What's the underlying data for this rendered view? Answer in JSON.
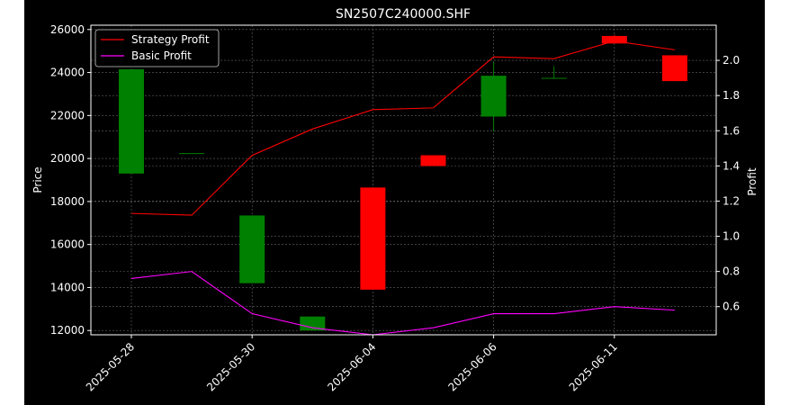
{
  "chart_data": {
    "type": "candlestick",
    "title": "SN2507C240000.SHF",
    "ylabel_left": "Price",
    "ylabel_right": "Profit",
    "x_tick_labels": [
      "2025-05-28",
      "2025-05-30",
      "2025-06-04",
      "2025-06-06",
      "2025-06-11"
    ],
    "x_tick_indices": [
      0,
      2,
      4,
      6,
      8
    ],
    "y_left_ticks": [
      12000,
      14000,
      16000,
      18000,
      20000,
      22000,
      24000,
      26000
    ],
    "y_left_lim": [
      11800,
      26200
    ],
    "y_right_ticks": [
      0.6,
      0.8,
      1.0,
      1.2,
      1.4,
      1.6,
      1.8,
      2.0
    ],
    "y_right_lim": [
      0.44,
      2.2
    ],
    "grid": true,
    "legend_position": "top-left",
    "candles": [
      {
        "open": 19300,
        "high": 24150,
        "low": 19300,
        "close": 24150
      },
      {
        "open": 20250,
        "high": 20250,
        "low": 20250,
        "close": 20250
      },
      {
        "open": 14200,
        "high": 17350,
        "low": 14200,
        "close": 17350
      },
      {
        "open": 12000,
        "high": 12650,
        "low": 12000,
        "close": 12650
      },
      {
        "open": 18650,
        "high": 18650,
        "low": 13900,
        "close": 13900
      },
      {
        "open": 20150,
        "high": 20150,
        "low": 19650,
        "close": 19650
      },
      {
        "open": 21950,
        "high": 24500,
        "low": 21250,
        "close": 23850
      },
      {
        "open": 23750,
        "high": 24300,
        "low": 23750,
        "close": 23750
      },
      {
        "open": 25700,
        "high": 25750,
        "low": 25350,
        "close": 25350
      },
      {
        "open": 24800,
        "high": 24800,
        "low": 23600,
        "close": 23600
      }
    ],
    "series": [
      {
        "name": "Strategy Profit",
        "color": "#ff0000",
        "values": [
          1.13,
          1.12,
          1.46,
          1.61,
          1.72,
          1.73,
          2.02,
          2.01,
          2.11,
          2.06
        ]
      },
      {
        "name": "Basic Profit",
        "color": "#ff00ff",
        "values": [
          0.76,
          0.8,
          0.56,
          0.48,
          0.44,
          0.48,
          0.56,
          0.56,
          0.6,
          0.58
        ]
      }
    ],
    "up_color": "#008000",
    "down_color": "#ff0000"
  }
}
